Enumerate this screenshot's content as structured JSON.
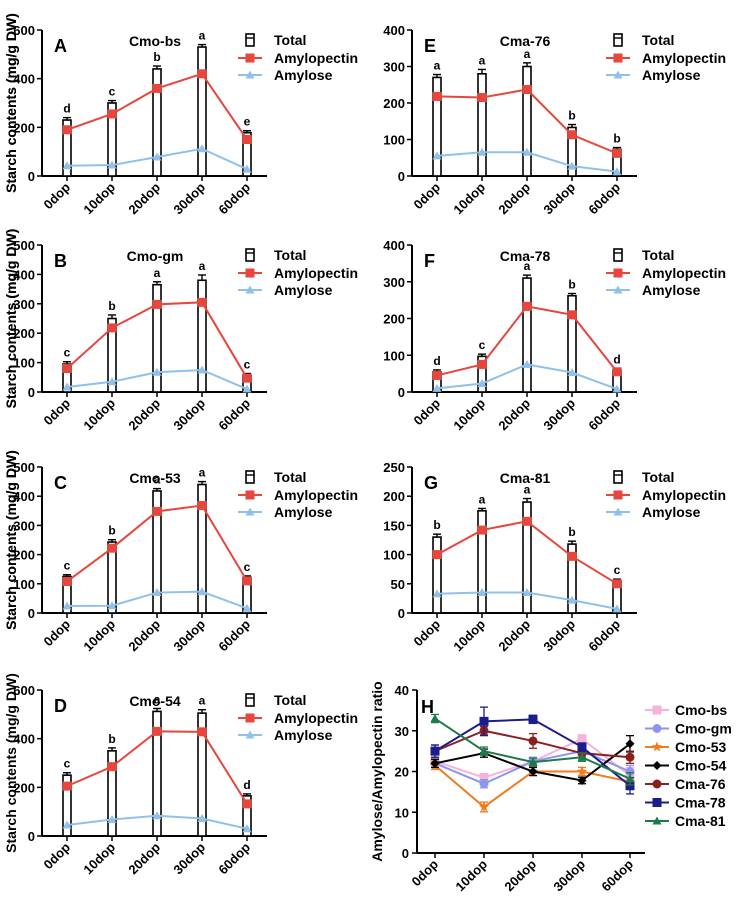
{
  "chart_data": [
    {
      "type": "bar+line",
      "letter": "A",
      "title": "Cmo-bs",
      "ylabel": "Starch contents (mg/g DW)",
      "categories": [
        "0dop",
        "10dop",
        "20dop",
        "30dop",
        "60dop"
      ],
      "ylim": [
        0,
        600
      ],
      "yticks": [
        0,
        200,
        400,
        600
      ],
      "series": [
        {
          "name": "Total",
          "values": [
            230,
            300,
            440,
            530,
            178
          ],
          "errors": [
            10,
            10,
            12,
            10,
            8
          ]
        },
        {
          "name": "Amylopectin",
          "values": [
            190,
            255,
            360,
            420,
            150
          ]
        },
        {
          "name": "Amylose",
          "values": [
            42,
            45,
            78,
            112,
            28
          ]
        }
      ],
      "letters": [
        "d",
        "c",
        "b",
        "a",
        "e"
      ]
    },
    {
      "type": "bar+line",
      "letter": "B",
      "title": "Cmo-gm",
      "ylabel": "Starch contents (mg/g DW)",
      "categories": [
        "0dop",
        "10dop",
        "20dop",
        "30dop",
        "60dop"
      ],
      "ylim": [
        0,
        500
      ],
      "yticks": [
        0,
        100,
        200,
        300,
        400,
        500
      ],
      "series": [
        {
          "name": "Total",
          "values": [
            95,
            250,
            365,
            380,
            57
          ],
          "errors": [
            8,
            12,
            10,
            18,
            6
          ]
        },
        {
          "name": "Amylopectin",
          "values": [
            80,
            218,
            298,
            305,
            47
          ]
        },
        {
          "name": "Amylose",
          "values": [
            17,
            35,
            67,
            75,
            10
          ]
        }
      ],
      "letters": [
        "c",
        "b",
        "a",
        "a",
        "c"
      ]
    },
    {
      "type": "bar+line",
      "letter": "C",
      "title": "Cmo-53",
      "ylabel": "Starch contents (mg/g DW)",
      "categories": [
        "0dop",
        "10dop",
        "20dop",
        "30dop",
        "60dop"
      ],
      "ylim": [
        0,
        500
      ],
      "yticks": [
        0,
        100,
        200,
        300,
        400,
        500
      ],
      "series": [
        {
          "name": "Total",
          "values": [
            125,
            243,
            418,
            440,
            122
          ],
          "errors": [
            6,
            8,
            8,
            10,
            5
          ]
        },
        {
          "name": "Amylopectin",
          "values": [
            108,
            222,
            348,
            368,
            110
          ]
        },
        {
          "name": "Amylose",
          "values": [
            24,
            25,
            70,
            73,
            16
          ]
        }
      ],
      "letters": [
        "c",
        "b",
        "a",
        "a",
        "c"
      ]
    },
    {
      "type": "bar+line",
      "letter": "D",
      "title": "Cmo-54",
      "ylabel": "Starch contents (mg/g DW)",
      "categories": [
        "0dop",
        "10dop",
        "20dop",
        "30dop",
        "60dop"
      ],
      "ylim": [
        0,
        600
      ],
      "yticks": [
        0,
        200,
        400,
        600
      ],
      "series": [
        {
          "name": "Total",
          "values": [
            250,
            350,
            512,
            505,
            165
          ],
          "errors": [
            10,
            12,
            12,
            14,
            8
          ]
        },
        {
          "name": "Amylopectin",
          "values": [
            205,
            285,
            430,
            428,
            132
          ]
        },
        {
          "name": "Amylose",
          "values": [
            45,
            68,
            83,
            72,
            30
          ]
        }
      ],
      "letters": [
        "c",
        "b",
        "a",
        "a",
        "d"
      ]
    },
    {
      "type": "bar+line",
      "letter": "E",
      "title": "Cma-76",
      "ylabel": "Starch contents (mg/g DW)",
      "categories": [
        "0dop",
        "10dop",
        "20dop",
        "30dop",
        "60dop"
      ],
      "ylim": [
        0,
        400
      ],
      "yticks": [
        0,
        100,
        200,
        300,
        400
      ],
      "series": [
        {
          "name": "Total",
          "values": [
            270,
            280,
            300,
            133,
            73
          ],
          "errors": [
            8,
            12,
            10,
            8,
            5
          ]
        },
        {
          "name": "Amylopectin",
          "values": [
            218,
            215,
            237,
            113,
            62
          ]
        },
        {
          "name": "Amylose",
          "values": [
            55,
            65,
            65,
            27,
            12
          ]
        }
      ],
      "letters": [
        "a",
        "a",
        "a",
        "b",
        "b"
      ]
    },
    {
      "type": "bar+line",
      "letter": "F",
      "title": "Cma-78",
      "ylabel": "Starch contents (mg/g DW)",
      "categories": [
        "0dop",
        "10dop",
        "20dop",
        "30dop",
        "60dop"
      ],
      "ylim": [
        0,
        400
      ],
      "yticks": [
        0,
        100,
        200,
        300,
        400
      ],
      "series": [
        {
          "name": "Total",
          "values": [
            55,
            97,
            310,
            262,
            60
          ],
          "errors": [
            5,
            6,
            8,
            6,
            4
          ]
        },
        {
          "name": "Amylopectin",
          "values": [
            45,
            75,
            233,
            210,
            55
          ]
        },
        {
          "name": "Amylose",
          "values": [
            10,
            23,
            75,
            53,
            8
          ]
        }
      ],
      "letters": [
        "d",
        "c",
        "a",
        "b",
        "d"
      ]
    },
    {
      "type": "bar+line",
      "letter": "G",
      "title": "Cma-81",
      "ylabel": "Starch contents (mg/g DW)",
      "categories": [
        "0dop",
        "10dop",
        "20dop",
        "30dop",
        "60dop"
      ],
      "ylim": [
        0,
        250
      ],
      "yticks": [
        0,
        50,
        100,
        150,
        200,
        250
      ],
      "series": [
        {
          "name": "Total",
          "values": [
            130,
            175,
            190,
            118,
            55
          ],
          "errors": [
            5,
            4,
            6,
            5,
            3
          ]
        },
        {
          "name": "Amylopectin",
          "values": [
            100,
            142,
            157,
            97,
            50
          ]
        },
        {
          "name": "Amylose",
          "values": [
            33,
            35,
            35,
            22,
            7
          ]
        }
      ],
      "letters": [
        "b",
        "a",
        "a",
        "b",
        "c"
      ]
    },
    {
      "type": "line",
      "letter": "H",
      "ylabel": "Amylose/Amylopectin ratio",
      "categories": [
        "0dop",
        "10dop",
        "20dop",
        "30dop",
        "60dop"
      ],
      "ylim": [
        0,
        40
      ],
      "yticks": [
        0,
        10,
        20,
        30,
        40
      ],
      "series": [
        {
          "name": "Cmo-bs",
          "values": [
            22.5,
            18.5,
            22.5,
            28,
            19
          ],
          "errors": [
            1,
            1,
            1,
            1,
            2
          ],
          "color": "#f5b3da",
          "marker": "square"
        },
        {
          "name": "Cmo-gm",
          "values": [
            22,
            17,
            22.5,
            25,
            20
          ],
          "errors": [
            1,
            1,
            1,
            1,
            1.5
          ],
          "color": "#8c96f0",
          "marker": "circle"
        },
        {
          "name": "Cmo-53",
          "values": [
            21.5,
            11.3,
            20,
            20,
            17.5
          ],
          "errors": [
            1,
            1.2,
            1,
            1,
            1
          ],
          "color": "#f27a1e",
          "marker": "star"
        },
        {
          "name": "Cmo-54",
          "values": [
            22,
            24.5,
            20,
            17.8,
            26.8
          ],
          "errors": [
            1,
            1,
            1,
            0.8,
            2
          ],
          "color": "#000000",
          "marker": "diamond"
        },
        {
          "name": "Cma-76",
          "values": [
            25,
            30,
            27.5,
            24.5,
            23.5
          ],
          "errors": [
            1.5,
            1,
            1.8,
            1,
            1.5
          ],
          "color": "#8b1f1f",
          "marker": "circle"
        },
        {
          "name": "Cma-78",
          "values": [
            25,
            32.3,
            32.8,
            26,
            16.5
          ],
          "errors": [
            1.5,
            3.5,
            1,
            1,
            2
          ],
          "color": "#1c1d8c",
          "marker": "square"
        },
        {
          "name": "Cma-81",
          "values": [
            33,
            25,
            22.3,
            23.5,
            18.2
          ],
          "errors": [
            1,
            1,
            1,
            1,
            1.5
          ],
          "color": "#1f7a4a",
          "marker": "triangle"
        }
      ]
    }
  ],
  "colors": {
    "total": "#000000",
    "amylopectin": "#e8453c",
    "amylose": "#8fc1ea"
  }
}
